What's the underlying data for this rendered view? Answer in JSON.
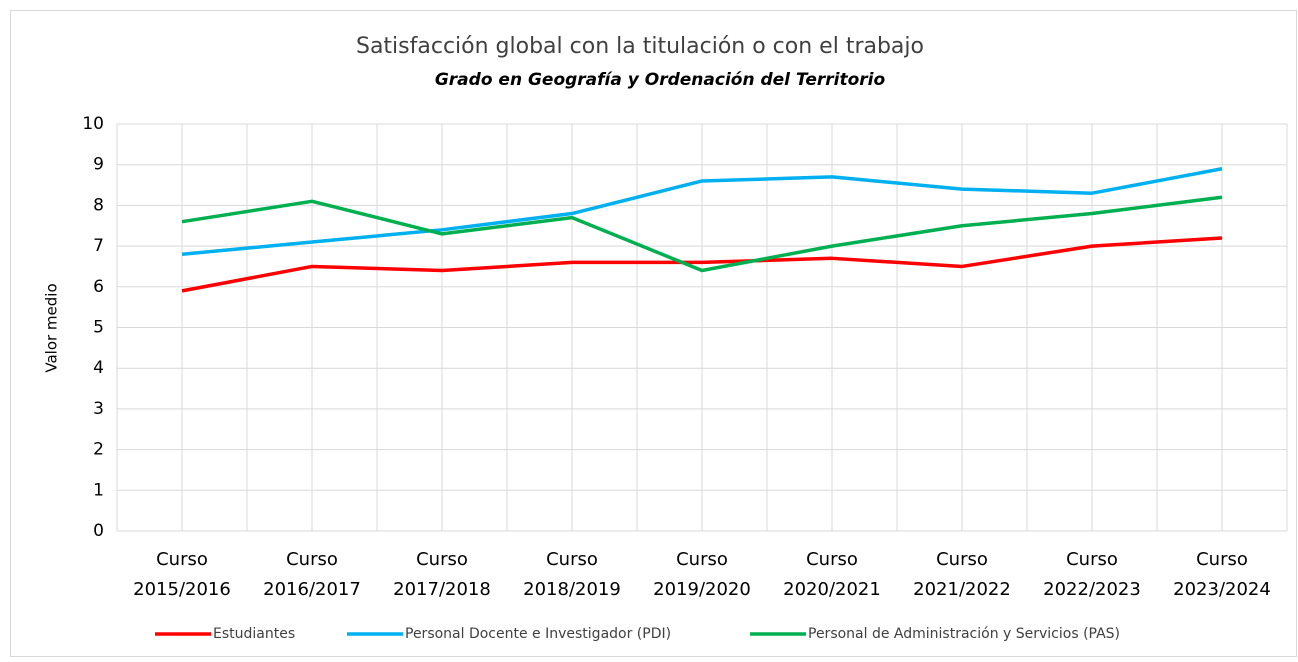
{
  "chart_data": {
    "type": "line",
    "title": "Satisfacción global con la titulación o con el trabajo",
    "subtitle": "Grado en Geografía y Ordenación del Territorio",
    "y_label": "Valor medio",
    "categories": [
      "Curso 2015/2016",
      "Curso 2016/2017",
      "Curso 2017/2018",
      "Curso 2018/2019",
      "Curso 2019/2020",
      "Curso 2020/2021",
      "Curso 2021/2022",
      "Curso 2022/2023",
      "Curso 2023/2024"
    ],
    "series": [
      {
        "name": "Estudiantes",
        "color": "#ff0000",
        "values": [
          5.9,
          6.5,
          6.4,
          6.6,
          6.6,
          6.7,
          6.5,
          7.0,
          7.2
        ]
      },
      {
        "name": "Personal Docente e Investigador (PDI)",
        "color": "#00b0f0",
        "values": [
          6.8,
          7.1,
          7.4,
          7.8,
          8.6,
          8.7,
          8.4,
          8.3,
          8.9
        ]
      },
      {
        "name": "Personal de Administración y Servicios (PAS)",
        "color": "#00b050",
        "values": [
          7.6,
          8.1,
          7.3,
          7.7,
          6.4,
          7.0,
          7.5,
          7.8,
          8.2
        ]
      }
    ],
    "ylim": [
      0,
      10
    ],
    "yticks": [
      0,
      1,
      2,
      3,
      4,
      5,
      6,
      7,
      8,
      9,
      10
    ],
    "grid": true,
    "legend": "bottom"
  }
}
